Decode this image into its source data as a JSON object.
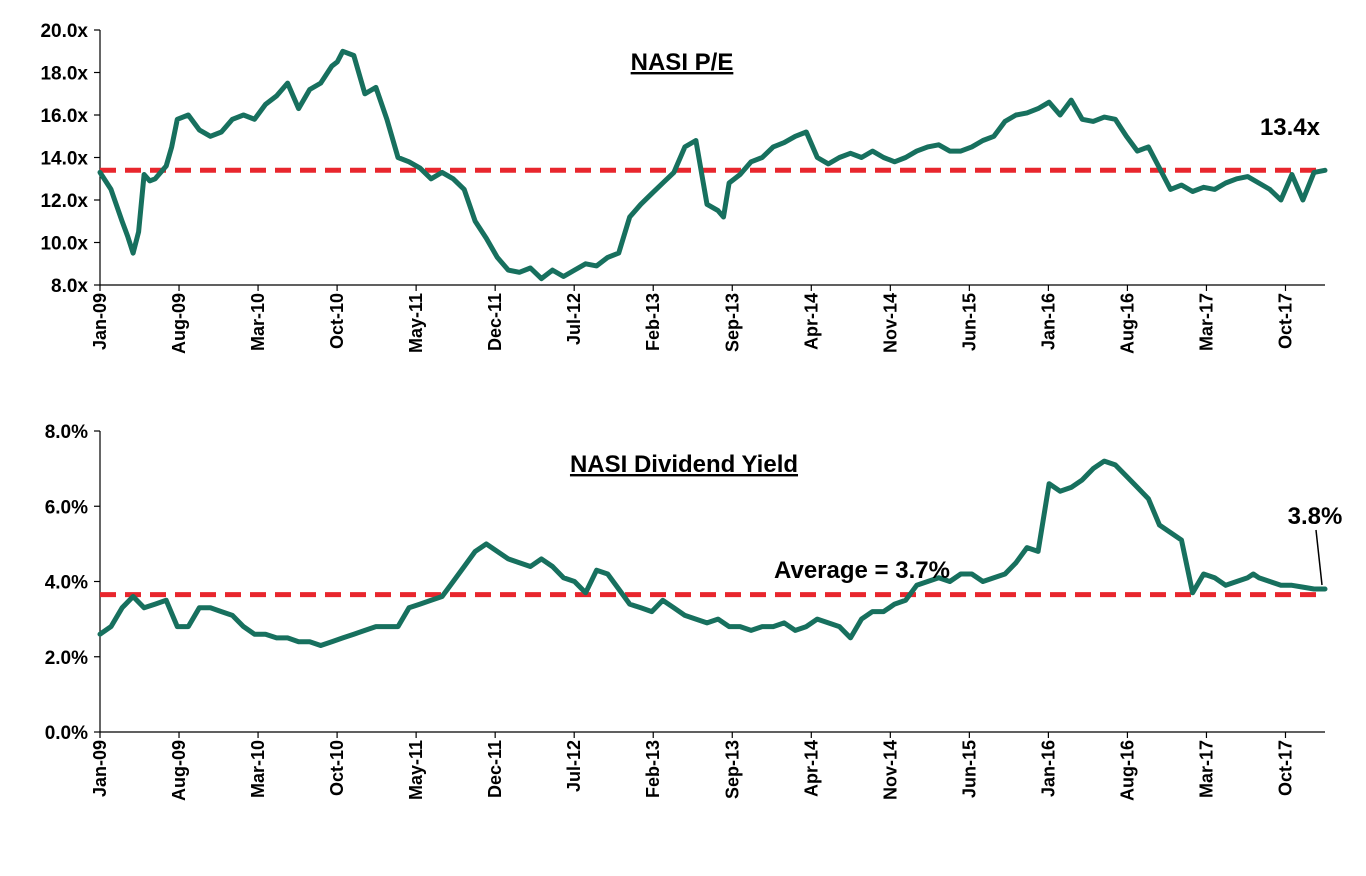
{
  "chart_data": [
    {
      "type": "line",
      "title": "NASI P/E",
      "xlabel": "",
      "ylabel": "",
      "ylim": [
        8,
        20
      ],
      "yticks": [
        "8.0x",
        "10.0x",
        "12.0x",
        "14.0x",
        "16.0x",
        "18.0x",
        "20.0x"
      ],
      "ytick_values": [
        8,
        10,
        12,
        14,
        16,
        18,
        20
      ],
      "xticks": [
        "Jan-09",
        "Aug-09",
        "Mar-10",
        "Oct-10",
        "May-11",
        "Dec-11",
        "Jul-12",
        "Feb-13",
        "Sep-13",
        "Apr-14",
        "Nov-14",
        "Jun-15",
        "Jan-16",
        "Aug-16",
        "Mar-17",
        "Oct-17"
      ],
      "x_range": [
        0,
        111
      ],
      "reference_line": {
        "value": 13.4,
        "color": "#e8262d"
      },
      "annotations": [
        {
          "text": "13.4x"
        }
      ],
      "series": [
        {
          "color": "#17705e",
          "x": [
            0,
            1,
            2,
            2.5,
            3,
            3.5,
            4,
            4.5,
            5,
            5.5,
            6,
            6.5,
            7,
            8,
            9,
            10,
            11,
            12,
            13,
            14,
            15,
            16,
            17,
            18,
            19,
            20,
            21,
            21.5,
            22,
            23,
            24,
            25,
            26,
            27,
            28,
            29,
            30,
            31,
            32,
            33,
            34,
            35,
            36,
            37,
            38,
            39,
            40,
            41,
            42,
            43,
            44,
            45,
            46,
            47,
            48,
            49,
            50,
            51,
            52,
            53,
            54,
            55,
            56,
            56.5,
            57,
            58,
            59,
            60,
            61,
            62,
            63,
            64,
            65,
            66,
            67,
            68,
            69,
            70,
            71,
            72,
            73,
            74,
            75,
            76,
            77,
            78,
            79,
            80,
            81,
            82,
            83,
            84,
            85,
            86,
            87,
            88,
            89,
            90,
            91,
            92,
            93,
            94,
            95,
            96,
            97,
            98,
            99,
            100,
            101,
            102,
            103,
            104,
            105,
            106,
            107,
            108,
            109,
            110,
            111
          ],
          "values": [
            13.3,
            12.5,
            11.0,
            10.3,
            9.5,
            10.5,
            13.2,
            12.9,
            13.0,
            13.3,
            13.6,
            14.5,
            15.8,
            16.0,
            15.3,
            15.0,
            15.2,
            15.8,
            16.0,
            15.8,
            16.5,
            16.9,
            17.5,
            16.3,
            17.2,
            17.5,
            18.3,
            18.5,
            19.0,
            18.8,
            17.0,
            17.3,
            15.8,
            14.0,
            13.8,
            13.5,
            13.0,
            13.3,
            13.0,
            12.5,
            11.0,
            10.2,
            9.3,
            8.7,
            8.6,
            8.8,
            8.3,
            8.7,
            8.4,
            8.7,
            9.0,
            8.9,
            9.3,
            9.5,
            11.2,
            11.8,
            12.3,
            12.8,
            13.3,
            14.5,
            14.8,
            11.8,
            11.5,
            11.2,
            12.8,
            13.2,
            13.8,
            14.0,
            14.5,
            14.7,
            15.0,
            15.2,
            14.0,
            13.7,
            14.0,
            14.2,
            14.0,
            14.3,
            14.0,
            13.8,
            14.0,
            14.3,
            14.5,
            14.6,
            14.3,
            14.3,
            14.5,
            14.8,
            15.0,
            15.7,
            16.0,
            16.1,
            16.3,
            16.6,
            16.0,
            16.7,
            15.8,
            15.7,
            15.9,
            15.8,
            15.0,
            14.3,
            14.5,
            13.5,
            12.5,
            12.7,
            12.4,
            12.6,
            12.5,
            12.8,
            13.0,
            13.1,
            12.8,
            12.5,
            12.0,
            13.2,
            12.0,
            13.3,
            13.4
          ]
        }
      ]
    },
    {
      "type": "line",
      "title": "NASI Dividend Yield",
      "xlabel": "",
      "ylabel": "",
      "ylim": [
        0,
        8
      ],
      "yticks": [
        "0.0%",
        "2.0%",
        "4.0%",
        "6.0%",
        "8.0%"
      ],
      "ytick_values": [
        0,
        2,
        4,
        6,
        8
      ],
      "xticks": [
        "Jan-09",
        "Aug-09",
        "Mar-10",
        "Oct-10",
        "May-11",
        "Dec-11",
        "Jul-12",
        "Feb-13",
        "Sep-13",
        "Apr-14",
        "Nov-14",
        "Jun-15",
        "Jan-16",
        "Aug-16",
        "Mar-17",
        "Oct-17"
      ],
      "x_range": [
        0,
        111
      ],
      "reference_line": {
        "value": 3.65,
        "color": "#e8262d"
      },
      "annotations": [
        {
          "text": "Average = 3.7%"
        },
        {
          "text": "3.8%"
        }
      ],
      "series": [
        {
          "color": "#17705e",
          "x": [
            0,
            1,
            2,
            3,
            4,
            5,
            6,
            7,
            8,
            9,
            10,
            11,
            12,
            13,
            14,
            15,
            16,
            17,
            18,
            19,
            20,
            21,
            22,
            23,
            24,
            25,
            26,
            27,
            28,
            29,
            30,
            31,
            32,
            33,
            34,
            35,
            36,
            37,
            38,
            39,
            40,
            41,
            42,
            43,
            44,
            45,
            46,
            47,
            48,
            49,
            50,
            51,
            52,
            53,
            54,
            55,
            56,
            57,
            58,
            59,
            60,
            61,
            62,
            63,
            64,
            65,
            66,
            67,
            68,
            69,
            70,
            71,
            72,
            73,
            74,
            75,
            76,
            77,
            78,
            79,
            80,
            81,
            82,
            83,
            84,
            85,
            86,
            87,
            88,
            89,
            90,
            91,
            92,
            93,
            94,
            95,
            96,
            97,
            98,
            99,
            100,
            101,
            102,
            103,
            104,
            104.5,
            105,
            106,
            107,
            108,
            109,
            110,
            111
          ],
          "values": [
            2.6,
            2.8,
            3.3,
            3.6,
            3.3,
            3.4,
            3.5,
            2.8,
            2.8,
            3.3,
            3.3,
            3.2,
            3.1,
            2.8,
            2.6,
            2.6,
            2.5,
            2.5,
            2.4,
            2.4,
            2.3,
            2.4,
            2.5,
            2.6,
            2.7,
            2.8,
            2.8,
            2.8,
            3.3,
            3.4,
            3.5,
            3.6,
            4.0,
            4.4,
            4.8,
            5.0,
            4.8,
            4.6,
            4.5,
            4.4,
            4.6,
            4.4,
            4.1,
            4.0,
            3.7,
            4.3,
            4.2,
            3.8,
            3.4,
            3.3,
            3.2,
            3.5,
            3.3,
            3.1,
            3.0,
            2.9,
            3.0,
            2.8,
            2.8,
            2.7,
            2.8,
            2.8,
            2.9,
            2.7,
            2.8,
            3.0,
            2.9,
            2.8,
            2.5,
            3.0,
            3.2,
            3.2,
            3.4,
            3.5,
            3.9,
            4.0,
            4.1,
            4.0,
            4.2,
            4.2,
            4.0,
            4.1,
            4.2,
            4.5,
            4.9,
            4.8,
            6.6,
            6.4,
            6.5,
            6.7,
            7.0,
            7.2,
            7.1,
            6.8,
            6.5,
            6.2,
            5.5,
            5.3,
            5.1,
            3.7,
            4.2,
            4.1,
            3.9,
            4.0,
            4.1,
            4.2,
            4.1,
            4.0,
            3.9,
            3.9,
            3.85,
            3.8,
            3.8
          ]
        }
      ]
    }
  ]
}
